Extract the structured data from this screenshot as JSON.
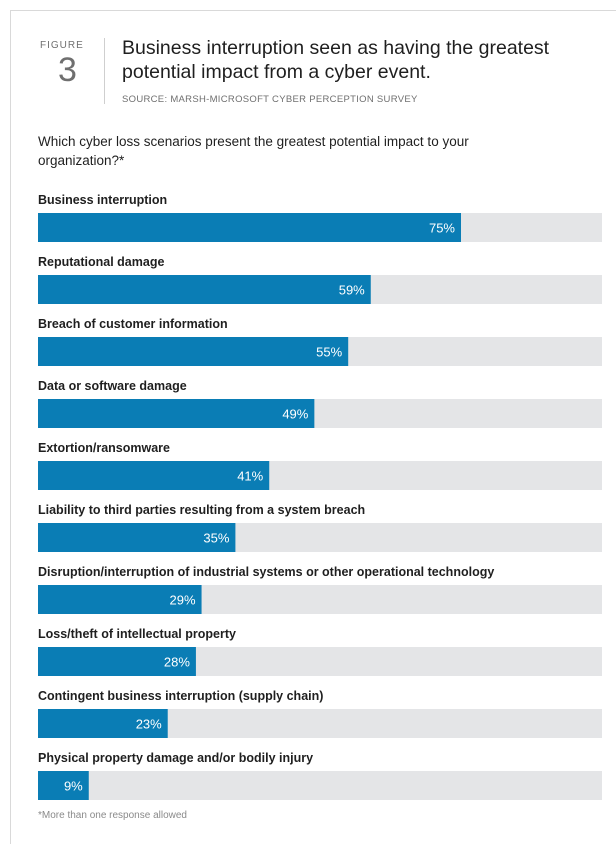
{
  "figure": {
    "word": "FIGURE",
    "number": "3",
    "title": "Business interruption seen as having the greatest potential impact from a cyber event.",
    "source": "SOURCE: MARSH-MICROSOFT CYBER PERCEPTION SURVEY"
  },
  "question": "Which cyber loss scenarios present the greatest potential impact to your organization?*",
  "footnote": "*More than one response allowed",
  "colors": {
    "bar": "#0a7db5",
    "track": "#e4e5e7"
  },
  "chart_data": {
    "type": "bar",
    "orientation": "horizontal",
    "categories": [
      "Business interruption",
      "Reputational damage",
      "Breach of customer information",
      "Data or software damage",
      "Extortion/ransomware",
      "Liability to third parties resulting from a system breach",
      "Disruption/interruption of industrial systems or other operational technology",
      "Loss/theft of intellectual property",
      "Contingent business interruption (supply chain)",
      "Physical property damage and/or bodily injury"
    ],
    "values": [
      75,
      59,
      55,
      49,
      41,
      35,
      29,
      28,
      23,
      9
    ],
    "value_labels": [
      "75%",
      "59%",
      "55%",
      "49%",
      "41%",
      "35%",
      "29%",
      "28%",
      "23%",
      "9%"
    ],
    "title": "",
    "xlabel": "",
    "ylabel": "",
    "xlim": [
      0,
      100
    ],
    "grid": false,
    "legend": "none"
  }
}
